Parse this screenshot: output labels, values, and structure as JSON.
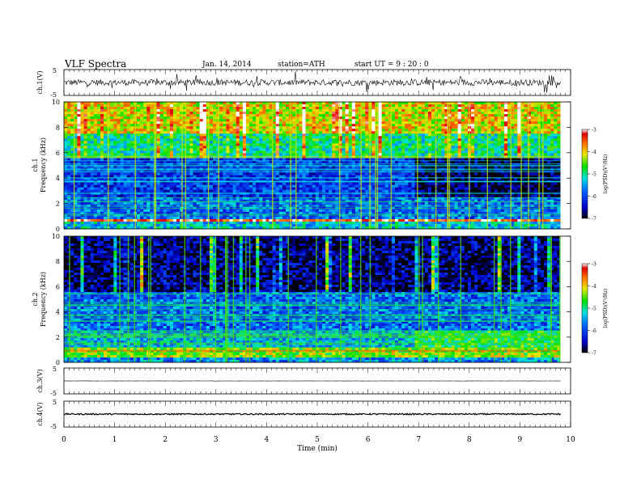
{
  "header": {
    "title": "VLF  Spectra",
    "date": "Jan. 14, 2014",
    "station": "station=ATH",
    "start": "start  UT  =   9 : 20 : 0"
  },
  "chart_data": [
    {
      "type": "line",
      "name": "ch1-waveform",
      "ylabel": "ch.1(V)",
      "ylim": [
        -5,
        5
      ],
      "yticks": [
        "5",
        "-5"
      ],
      "xlim": [
        0,
        10
      ],
      "trace_level_V": 0,
      "trace_noise_V": 1.2
    },
    {
      "type": "heatmap",
      "name": "ch1-spectrogram",
      "ylabel_channel": "ch.1",
      "ylabel": "Frequency  (kHz)",
      "ylim": [
        0,
        10
      ],
      "yticks": [
        "0",
        "2",
        "4",
        "6",
        "8",
        "10"
      ],
      "xlim": [
        0,
        9.8
      ],
      "colorbar": {
        "label": "log(PSD)(V²/Hz)",
        "range": [
          -7,
          -3
        ],
        "ticks": [
          "-3",
          "-4",
          "-5",
          "-6",
          "-7"
        ]
      },
      "bands_kHz": [
        {
          "f": [
            0,
            0.5
          ],
          "logpsd": -5.3
        },
        {
          "f": [
            0.5,
            0.8
          ],
          "logpsd": -3.3
        },
        {
          "f": [
            0.8,
            2.5
          ],
          "logpsd": -5.8
        },
        {
          "f": [
            2.5,
            5.5
          ],
          "logpsd": -6.1
        },
        {
          "f": [
            5.5,
            7.5
          ],
          "logpsd": -5.0
        },
        {
          "f": [
            7.5,
            10
          ],
          "logpsd": -4.1
        }
      ]
    },
    {
      "type": "heatmap",
      "name": "ch2-spectrogram",
      "ylabel_channel": "ch.2",
      "ylabel": "Frequency  (kHz)",
      "ylim": [
        0,
        10
      ],
      "yticks": [
        "0",
        "2",
        "4",
        "6",
        "8",
        "10"
      ],
      "xlim": [
        0,
        9.8
      ],
      "colorbar": {
        "label": "log(PSD)(V²/Hz)",
        "range": [
          -7,
          -3
        ],
        "ticks": [
          "-3",
          "-4",
          "-5",
          "-6",
          "-7"
        ]
      },
      "bands_kHz": [
        {
          "f": [
            0,
            0.4
          ],
          "logpsd": -5.6
        },
        {
          "f": [
            0.4,
            1.2
          ],
          "logpsd": -4.4
        },
        {
          "f": [
            1.2,
            2.5
          ],
          "logpsd": -5.4
        },
        {
          "f": [
            2.5,
            5.5
          ],
          "logpsd": -5.8
        },
        {
          "f": [
            5.5,
            10
          ],
          "logpsd": -6.7
        }
      ]
    },
    {
      "type": "line",
      "name": "ch3-waveform",
      "ylabel": "ch.3(V)",
      "ylim": [
        -5,
        5
      ],
      "yticks": [
        "5",
        "-5"
      ],
      "xlim": [
        0,
        10
      ],
      "trace_level_V": 0,
      "trace_noise_V": 0.05
    },
    {
      "type": "line",
      "name": "ch4-waveform",
      "ylabel": "ch.4(V)",
      "ylim": [
        -5,
        5
      ],
      "yticks": [
        "5",
        "-5"
      ],
      "xlim": [
        0,
        10
      ],
      "trace_level_V": 0,
      "trace_noise_V": 0.25
    }
  ],
  "x_axis": {
    "label": "Time  (min)",
    "range": [
      0,
      10
    ],
    "ticks": [
      "0",
      "1",
      "2",
      "3",
      "4",
      "5",
      "6",
      "7",
      "8",
      "9",
      "10"
    ]
  }
}
